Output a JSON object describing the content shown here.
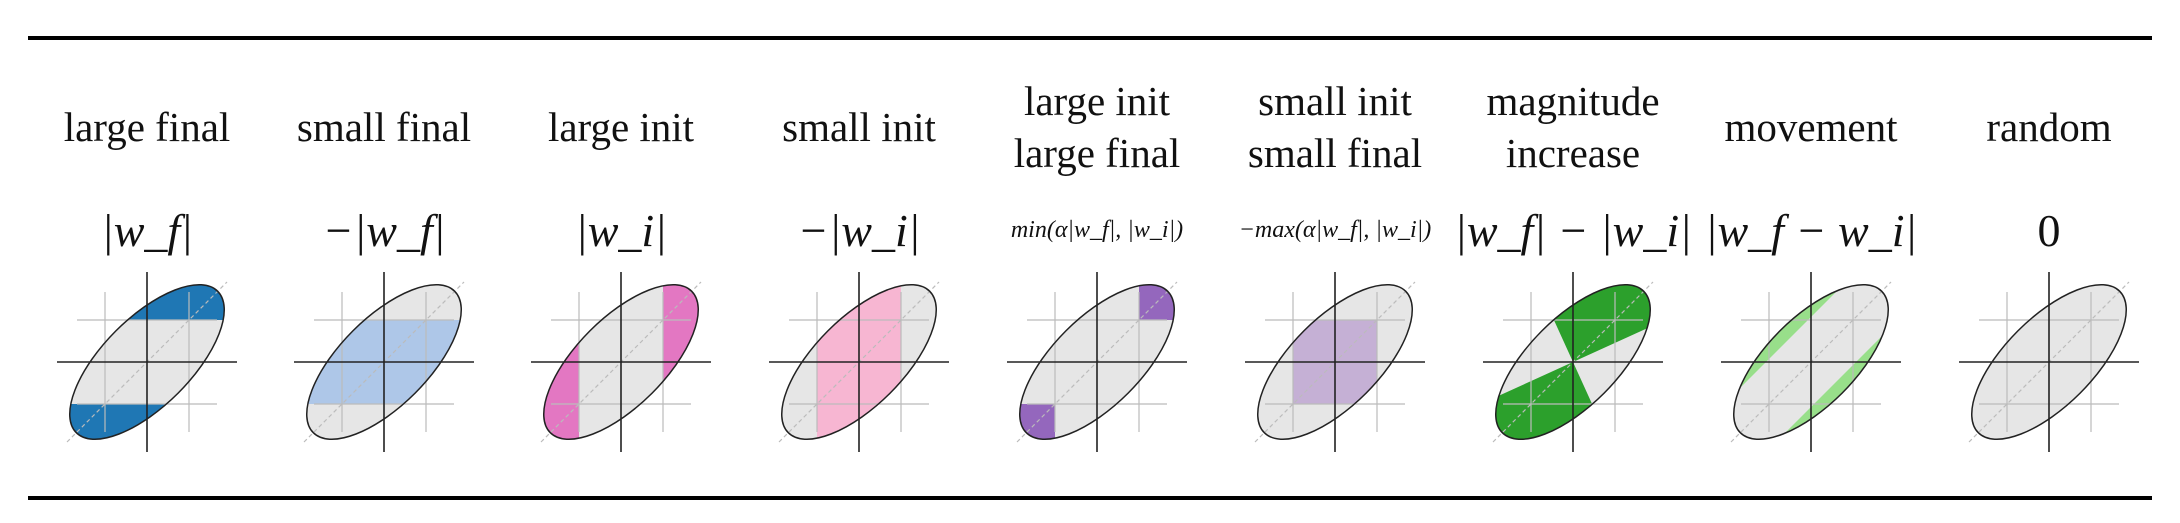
{
  "columns": [
    {
      "key": "large-final",
      "title": [
        "large final"
      ],
      "formula": "|w_f|",
      "formula_size": "big",
      "fill": "#1f77b4",
      "shade": "large-final"
    },
    {
      "key": "small-final",
      "title": [
        "small final"
      ],
      "formula": "−|w_f|",
      "formula_size": "big",
      "fill": "#aec7e8",
      "shade": "small-final"
    },
    {
      "key": "large-init",
      "title": [
        "large init"
      ],
      "formula": "|w_i|",
      "formula_size": "big",
      "fill": "#e377c2",
      "shade": "large-init"
    },
    {
      "key": "small-init",
      "title": [
        "small init"
      ],
      "formula": "−|w_i|",
      "formula_size": "big",
      "fill": "#f7b6d2",
      "shade": "small-init"
    },
    {
      "key": "large-init-large-final",
      "title": [
        "large init",
        "large final"
      ],
      "formula": "min(α|w_f|, |w_i|)",
      "formula_size": "small",
      "fill": "#9467bd",
      "shade": "both-large"
    },
    {
      "key": "small-init-small-final",
      "title": [
        "small init",
        "small final"
      ],
      "formula": "−max(α|w_f|, |w_i|)",
      "formula_size": "small",
      "fill": "#c5b0d5",
      "shade": "both-small"
    },
    {
      "key": "magnitude-increase",
      "title": [
        "magnitude",
        "increase"
      ],
      "formula": "|w_f| − |w_i|",
      "formula_size": "big",
      "fill": "#2ca02c",
      "shade": "magnitude"
    },
    {
      "key": "movement",
      "title": [
        "movement"
      ],
      "formula": "|w_f − w_i|",
      "formula_size": "big",
      "fill": "#98df8a",
      "shade": "movement"
    },
    {
      "key": "random",
      "title": [
        "random"
      ],
      "formula": "0",
      "formula_size": "plain",
      "fill": "#e6e6e6",
      "shade": "none"
    }
  ],
  "colors": {
    "ellipse_fill": "#e6e6e6",
    "ellipse_stroke": "#222222",
    "axis": "#222222",
    "grid": "#bbbbbb"
  }
}
